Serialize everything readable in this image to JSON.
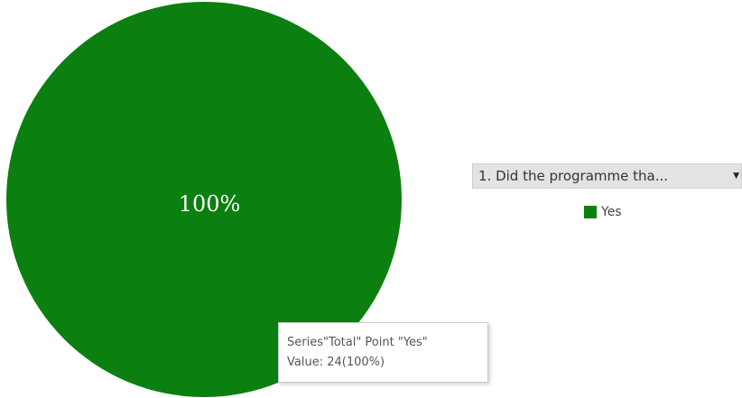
{
  "chart_data": {
    "type": "pie",
    "title": "",
    "series": [
      {
        "name": "Total",
        "categories": [
          "Yes"
        ],
        "values": [
          24
        ],
        "percent_labels": [
          "100%"
        ],
        "colors": [
          "#0b7f10"
        ]
      }
    ],
    "legend": {
      "placement": "right",
      "entries": [
        {
          "label": "Yes",
          "color": "#0b7f10"
        }
      ]
    },
    "filter": {
      "label": "1. Did the programme tha...",
      "arrow_icon": "dropdown-arrow-icon"
    },
    "tooltip": {
      "line1": "Series\"Total\" Point \"Yes\"",
      "line2": "Value: 24(100%)"
    }
  }
}
